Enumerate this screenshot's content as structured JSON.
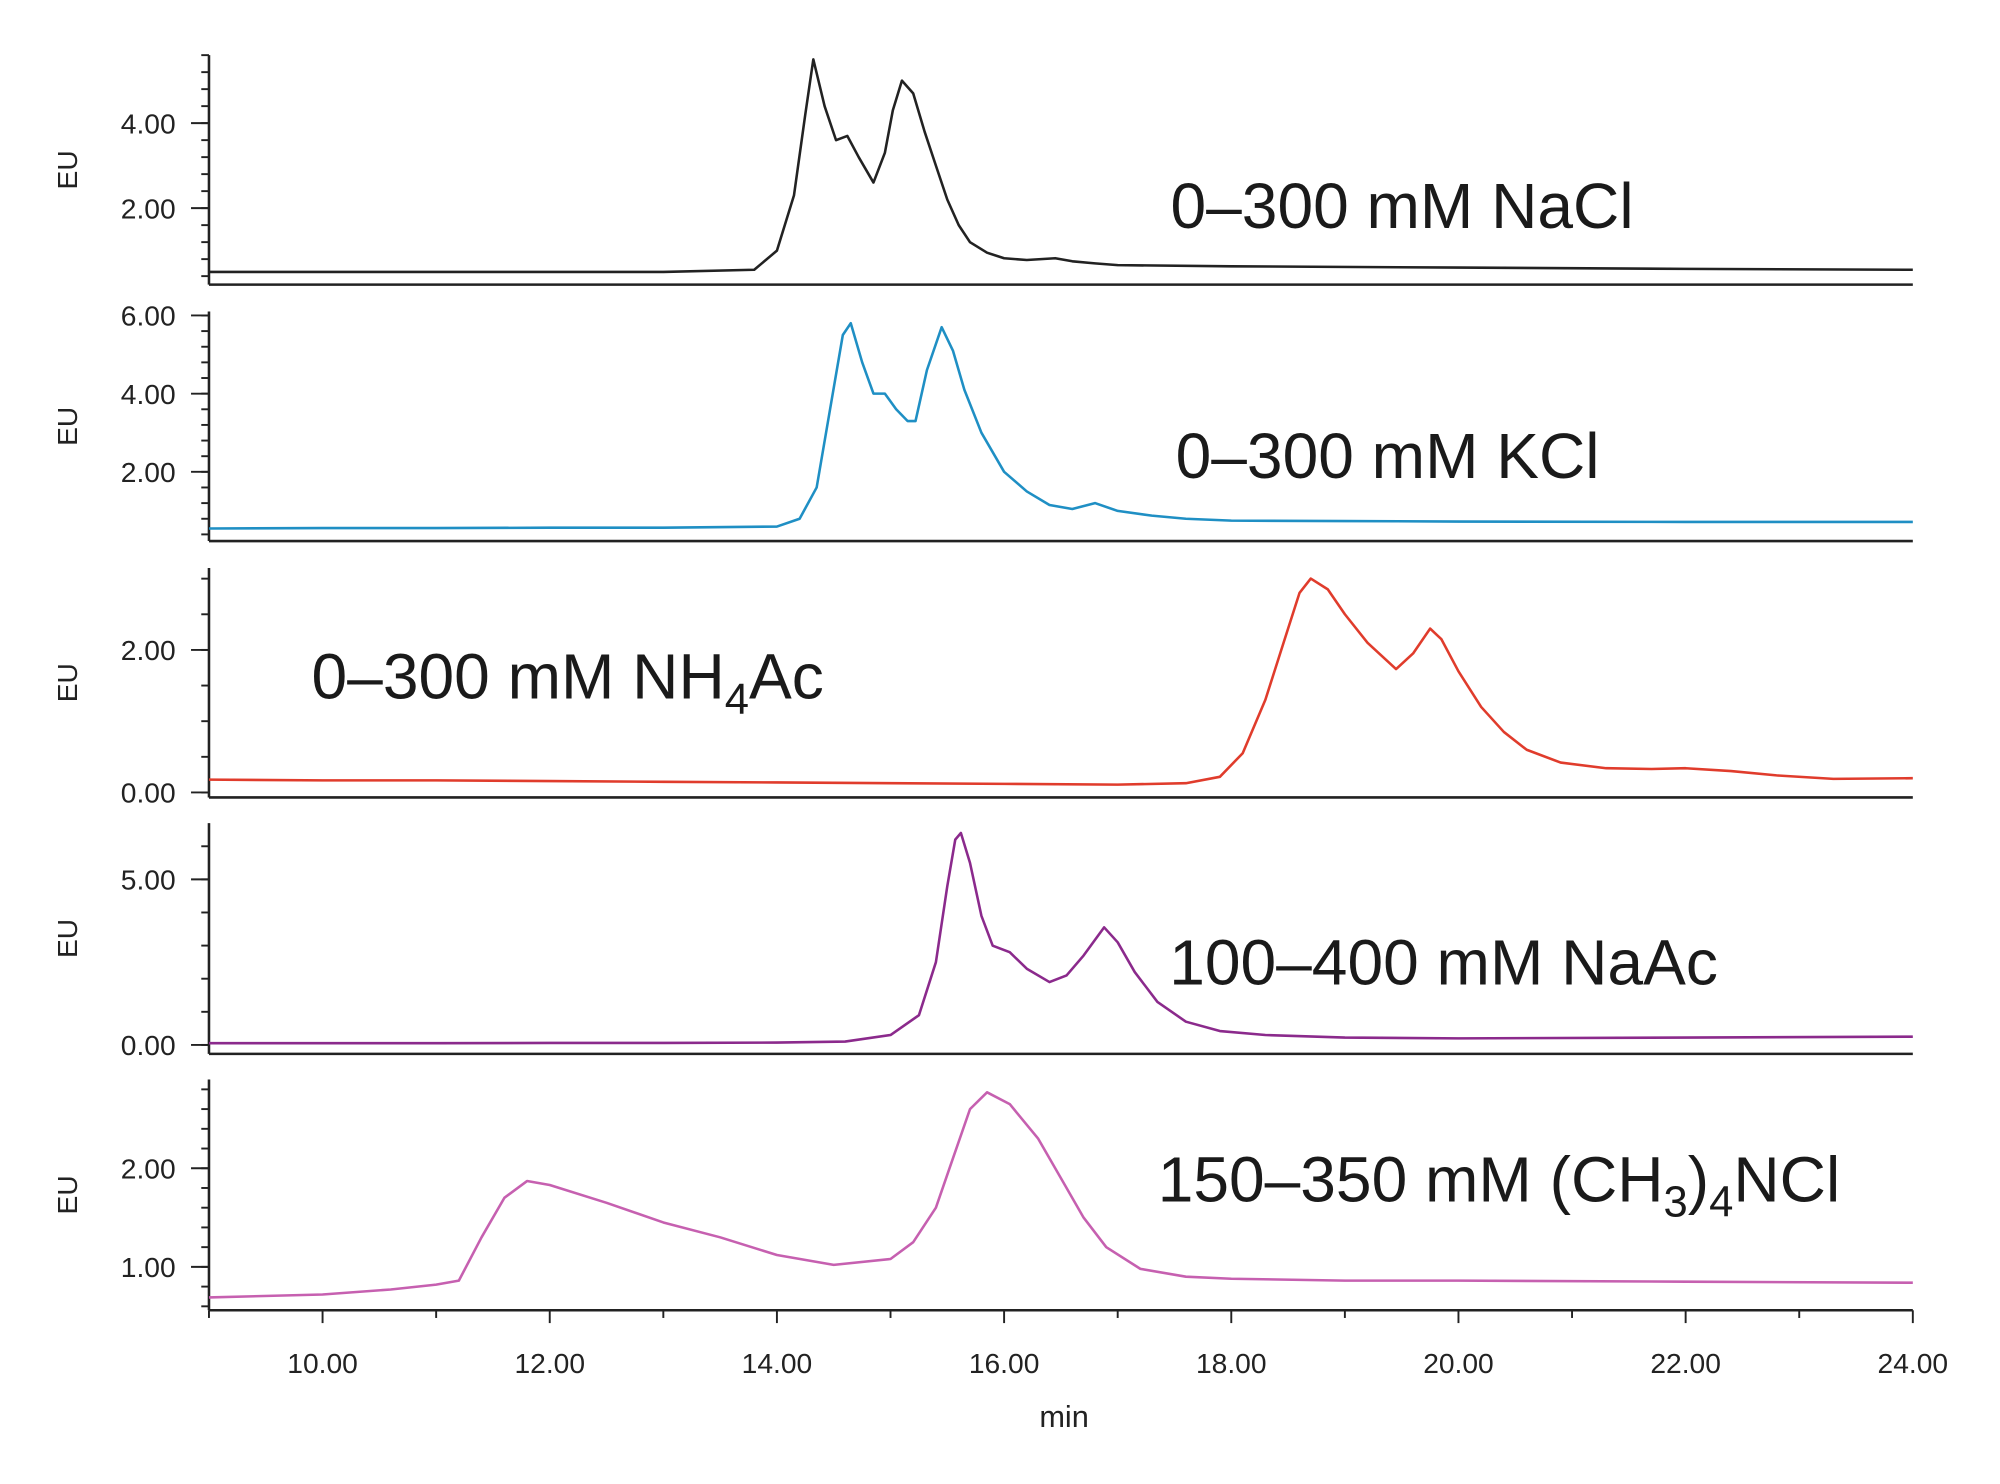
{
  "chart_data": {
    "type": "line",
    "xlabel": "min",
    "xlim": [
      9,
      24
    ],
    "x_ticks": [
      "10.00",
      "12.00",
      "14.00",
      "16.00",
      "18.00",
      "20.00",
      "22.00",
      "24.00"
    ],
    "x_tick_values": [
      10,
      12,
      14,
      16,
      18,
      20,
      22,
      24
    ],
    "grid": false,
    "panels": [
      {
        "label_parts": [
          "0–300 mM NaCl"
        ],
        "ylabel": "EU",
        "color": "#222222",
        "ylim": [
          0.2,
          5.6
        ],
        "y_ticks": [
          "2.00",
          "4.00"
        ],
        "y_tick_values": [
          2,
          4
        ],
        "y_minor_step": 0.4,
        "x": [
          9,
          10,
          11,
          12,
          13,
          13.8,
          14.0,
          14.15,
          14.25,
          14.32,
          14.42,
          14.52,
          14.62,
          14.72,
          14.85,
          14.95,
          15.02,
          15.1,
          15.2,
          15.3,
          15.4,
          15.5,
          15.6,
          15.7,
          15.85,
          16.0,
          16.2,
          16.45,
          16.6,
          16.8,
          17,
          18,
          20,
          22,
          24
        ],
        "y": [
          0.5,
          0.5,
          0.5,
          0.5,
          0.5,
          0.55,
          1.0,
          2.3,
          4.2,
          5.5,
          4.4,
          3.6,
          3.7,
          3.2,
          2.6,
          3.3,
          4.3,
          5.0,
          4.7,
          3.8,
          3.0,
          2.2,
          1.6,
          1.2,
          0.95,
          0.82,
          0.78,
          0.82,
          0.75,
          0.7,
          0.66,
          0.63,
          0.6,
          0.57,
          0.55
        ]
      },
      {
        "label_parts": [
          "0–300 mM KCl"
        ],
        "ylabel": "EU",
        "color": "#1f8fc4",
        "ylim": [
          0.23,
          6.1
        ],
        "y_ticks": [
          "2.00",
          "4.00",
          "6.00"
        ],
        "y_tick_values": [
          2,
          4,
          6
        ],
        "y_minor_step": 0.4,
        "x": [
          9,
          10,
          11,
          12,
          13,
          14,
          14.2,
          14.35,
          14.48,
          14.58,
          14.65,
          14.75,
          14.85,
          14.95,
          15.05,
          15.15,
          15.22,
          15.32,
          15.45,
          15.55,
          15.65,
          15.8,
          16.0,
          16.2,
          16.4,
          16.6,
          16.8,
          17.0,
          17.3,
          17.6,
          18,
          19,
          20,
          22,
          24
        ],
        "y": [
          0.55,
          0.56,
          0.56,
          0.57,
          0.57,
          0.6,
          0.8,
          1.6,
          3.8,
          5.5,
          5.8,
          4.8,
          4.0,
          4.0,
          3.6,
          3.3,
          3.3,
          4.6,
          5.7,
          5.1,
          4.1,
          3.0,
          2.0,
          1.5,
          1.15,
          1.05,
          1.2,
          1.0,
          0.88,
          0.8,
          0.75,
          0.74,
          0.73,
          0.72,
          0.72
        ]
      },
      {
        "label_parts": [
          "0–300 mM NH",
          "4",
          "Ac"
        ],
        "ylabel": "EU",
        "color": "#e03c2c",
        "ylim": [
          -0.07,
          3.15
        ],
        "y_ticks": [
          "0.00",
          "2.00"
        ],
        "y_tick_values": [
          0,
          2
        ],
        "y_minor_step": 0.5,
        "x": [
          9,
          10,
          11,
          12,
          13,
          14,
          15,
          16,
          17,
          17.6,
          17.9,
          18.1,
          18.3,
          18.5,
          18.6,
          18.7,
          18.85,
          19.0,
          19.2,
          19.45,
          19.6,
          19.75,
          19.85,
          20.0,
          20.2,
          20.4,
          20.6,
          20.9,
          21.3,
          21.7,
          22.0,
          22.4,
          22.8,
          23.3,
          24
        ],
        "y": [
          0.18,
          0.17,
          0.17,
          0.16,
          0.15,
          0.14,
          0.13,
          0.12,
          0.11,
          0.13,
          0.22,
          0.55,
          1.3,
          2.3,
          2.8,
          3.0,
          2.85,
          2.5,
          2.1,
          1.73,
          1.95,
          2.3,
          2.15,
          1.7,
          1.2,
          0.85,
          0.6,
          0.42,
          0.34,
          0.33,
          0.34,
          0.3,
          0.24,
          0.19,
          0.2
        ]
      },
      {
        "label_parts": [
          "100–400 mM NaAc"
        ],
        "ylabel": "EU",
        "color": "#8b2a8c",
        "ylim": [
          -0.27,
          6.7
        ],
        "y_ticks": [
          "0.00",
          "5.00"
        ],
        "y_tick_values": [
          0,
          5
        ],
        "y_minor_step": 1.0,
        "x": [
          9,
          10,
          11,
          12,
          13,
          14,
          14.6,
          15.0,
          15.25,
          15.4,
          15.5,
          15.57,
          15.62,
          15.7,
          15.8,
          15.9,
          16.05,
          16.2,
          16.4,
          16.55,
          16.7,
          16.88,
          17.0,
          17.15,
          17.35,
          17.6,
          17.9,
          18.3,
          19,
          20,
          22,
          24
        ],
        "y": [
          0.05,
          0.05,
          0.05,
          0.06,
          0.06,
          0.07,
          0.1,
          0.3,
          0.9,
          2.5,
          4.8,
          6.2,
          6.4,
          5.5,
          3.9,
          3.0,
          2.8,
          2.3,
          1.9,
          2.1,
          2.7,
          3.55,
          3.1,
          2.2,
          1.3,
          0.7,
          0.42,
          0.3,
          0.22,
          0.2,
          0.22,
          0.25
        ]
      },
      {
        "label_parts": [
          "150–350 mM (CH",
          "3",
          ")",
          "4",
          "NCl"
        ],
        "ylabel": "EU",
        "color": "#c660b0",
        "ylim": [
          0.56,
          2.9
        ],
        "y_ticks": [
          "1.00",
          "2.00"
        ],
        "y_tick_values": [
          1,
          2
        ],
        "y_minor_step": 0.2,
        "x": [
          9,
          10,
          10.6,
          11.0,
          11.2,
          11.4,
          11.6,
          11.8,
          12.0,
          12.5,
          13,
          13.5,
          14,
          14.5,
          15,
          15.2,
          15.4,
          15.55,
          15.7,
          15.85,
          16.05,
          16.3,
          16.5,
          16.7,
          16.9,
          17.2,
          17.6,
          18,
          19,
          20,
          22,
          24
        ],
        "y": [
          0.69,
          0.72,
          0.77,
          0.82,
          0.86,
          1.3,
          1.7,
          1.87,
          1.83,
          1.65,
          1.45,
          1.3,
          1.12,
          1.02,
          1.08,
          1.25,
          1.6,
          2.1,
          2.6,
          2.77,
          2.65,
          2.3,
          1.9,
          1.5,
          1.2,
          0.98,
          0.9,
          0.88,
          0.86,
          0.86,
          0.85,
          0.84
        ]
      }
    ]
  }
}
